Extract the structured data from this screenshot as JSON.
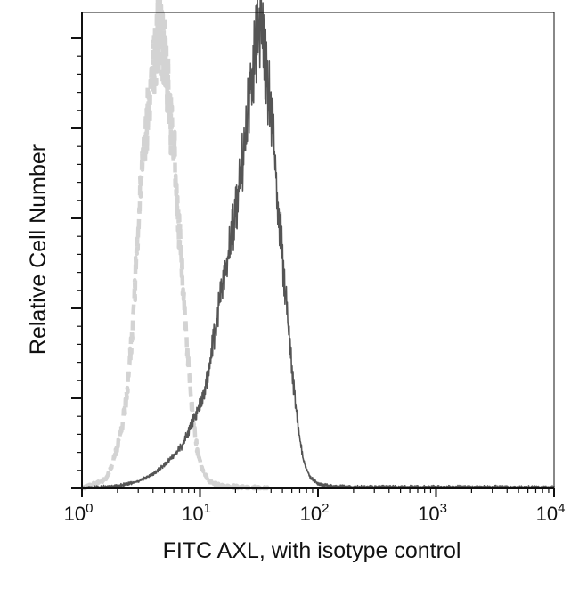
{
  "chart_data": {
    "type": "area",
    "title": "",
    "xlabel": "FITC AXL, with isotype control",
    "ylabel": "Relative Cell Number",
    "x_scale": "log",
    "xlim": [
      1,
      10000
    ],
    "ylim": [
      0,
      100
    ],
    "x_ticks": [
      {
        "base": "10",
        "exp": "0"
      },
      {
        "base": "10",
        "exp": "1"
      },
      {
        "base": "10",
        "exp": "2"
      },
      {
        "base": "10",
        "exp": "3"
      },
      {
        "base": "10",
        "exp": "4"
      }
    ],
    "y_tick_labels": false,
    "grid": false,
    "series": [
      {
        "style": "dashed",
        "color": "#d3d3d3",
        "points": [
          [
            1.0,
            0
          ],
          [
            1.3,
            1
          ],
          [
            1.6,
            2
          ],
          [
            1.8,
            5
          ],
          [
            2.0,
            9
          ],
          [
            2.2,
            14
          ],
          [
            2.4,
            20
          ],
          [
            2.6,
            30
          ],
          [
            2.8,
            42
          ],
          [
            3.0,
            55
          ],
          [
            3.2,
            66
          ],
          [
            3.4,
            74
          ],
          [
            3.6,
            80
          ],
          [
            3.8,
            86
          ],
          [
            4.0,
            91
          ],
          [
            4.3,
            95
          ],
          [
            4.6,
            99
          ],
          [
            4.9,
            94
          ],
          [
            5.2,
            88
          ],
          [
            5.6,
            80
          ],
          [
            6.0,
            72
          ],
          [
            6.4,
            62
          ],
          [
            6.8,
            52
          ],
          [
            7.2,
            42
          ],
          [
            7.7,
            32
          ],
          [
            8.2,
            22
          ],
          [
            8.8,
            14
          ],
          [
            9.5,
            8
          ],
          [
            10.5,
            4
          ],
          [
            12.0,
            1.5
          ],
          [
            15.0,
            0.5
          ],
          [
            25.0,
            0.2
          ],
          [
            40.0,
            0
          ]
        ]
      },
      {
        "style": "solid",
        "color": "#555555",
        "points": [
          [
            1.0,
            0
          ],
          [
            2.0,
            0.5
          ],
          [
            3.0,
            1.5
          ],
          [
            4.0,
            3
          ],
          [
            5.0,
            5
          ],
          [
            6.0,
            7
          ],
          [
            7.0,
            9
          ],
          [
            8.0,
            12
          ],
          [
            9.0,
            15
          ],
          [
            10.0,
            18
          ],
          [
            11.0,
            21
          ],
          [
            12.0,
            26
          ],
          [
            13.5,
            34
          ],
          [
            15.0,
            42
          ],
          [
            17.0,
            48
          ],
          [
            19.0,
            55
          ],
          [
            21.0,
            62
          ],
          [
            23.0,
            70
          ],
          [
            25.0,
            78
          ],
          [
            27.0,
            86
          ],
          [
            29.0,
            92
          ],
          [
            31.0,
            97
          ],
          [
            33.0,
            99
          ],
          [
            35.0,
            92
          ],
          [
            38.0,
            85
          ],
          [
            41.0,
            77
          ],
          [
            44.0,
            66
          ],
          [
            48.0,
            55
          ],
          [
            52.0,
            44
          ],
          [
            57.0,
            32
          ],
          [
            62.0,
            22
          ],
          [
            68.0,
            13
          ],
          [
            75.0,
            6
          ],
          [
            85.0,
            2.5
          ],
          [
            100.0,
            1
          ],
          [
            130.0,
            0.5
          ],
          [
            200.0,
            0.3
          ],
          [
            500.0,
            0.3
          ],
          [
            1000.0,
            0.3
          ],
          [
            3000.0,
            0.3
          ],
          [
            10000.0,
            0.2
          ]
        ]
      }
    ]
  }
}
